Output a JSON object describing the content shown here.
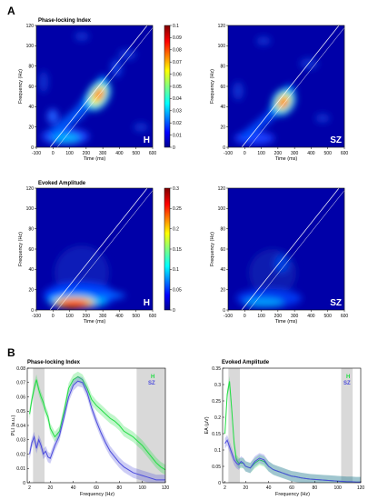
{
  "panel_a_label": "A",
  "panel_b_label": "B",
  "heatmaps": {
    "ylabel": "Frequency (Hz)",
    "xlabel": "Time (ms)",
    "xticks": [
      "-100",
      "0",
      "100",
      "200",
      "300",
      "400",
      "500",
      "600"
    ],
    "yticks": [
      "0",
      "20",
      "40",
      "60",
      "80",
      "100",
      "120"
    ],
    "rows": [
      {
        "title": "Phase-locking Index",
        "cbar_ticks": [
          "0",
          "0.01",
          "0.02",
          "0.03",
          "0.04",
          "0.05",
          "0.06",
          "0.07",
          "0.08",
          "0.09",
          "0.1"
        ],
        "groups": [
          "H",
          "SZ"
        ]
      },
      {
        "title": "Evoked Amplitude",
        "cbar_ticks": [
          "0",
          "0.05",
          "0.1",
          "0.15",
          "0.2",
          "0.25",
          "0.3"
        ],
        "groups": [
          "H",
          "SZ"
        ]
      }
    ]
  },
  "colors": {
    "healthy": "#22dd44",
    "schizophrenia": "#4b4bdc",
    "band_shade": "#d9d9d9"
  },
  "chart_data": [
    {
      "type": "line",
      "title": "Phase-locking Index",
      "xlabel": "Frequency (Hz)",
      "ylabel": "PLI (a.u.)",
      "xlim": [
        0,
        120
      ],
      "ylim": [
        0,
        0.08
      ],
      "xticks": [
        "2",
        "20",
        "40",
        "60",
        "80",
        "100",
        "120"
      ],
      "yticks": [
        "0",
        "0.01",
        "0.02",
        "0.03",
        "0.04",
        "0.05",
        "0.06",
        "0.07",
        "0.08"
      ],
      "legend": [
        "H",
        "SZ"
      ],
      "x": [
        2,
        4,
        6,
        8,
        10,
        12,
        14,
        16,
        18,
        20,
        24,
        28,
        32,
        36,
        40,
        44,
        48,
        52,
        56,
        60,
        64,
        68,
        72,
        76,
        80,
        84,
        88,
        92,
        96,
        100,
        104,
        108,
        112,
        116,
        120
      ],
      "series": [
        {
          "name": "H",
          "values": [
            0.048,
            0.058,
            0.066,
            0.072,
            0.065,
            0.06,
            0.056,
            0.05,
            0.046,
            0.038,
            0.032,
            0.036,
            0.05,
            0.066,
            0.072,
            0.074,
            0.072,
            0.066,
            0.058,
            0.054,
            0.051,
            0.048,
            0.045,
            0.043,
            0.04,
            0.036,
            0.034,
            0.032,
            0.029,
            0.026,
            0.022,
            0.018,
            0.014,
            0.011,
            0.009
          ]
        },
        {
          "name": "SZ",
          "values": [
            0.02,
            0.028,
            0.032,
            0.024,
            0.03,
            0.026,
            0.02,
            0.022,
            0.018,
            0.017,
            0.026,
            0.033,
            0.046,
            0.06,
            0.068,
            0.071,
            0.07,
            0.063,
            0.052,
            0.043,
            0.035,
            0.028,
            0.022,
            0.018,
            0.014,
            0.011,
            0.009,
            0.007,
            0.006,
            0.005,
            0.004,
            0.003,
            0.002,
            0.002,
            0.002
          ]
        }
      ],
      "shaded_bands_hz": [
        [
          5,
          15
        ],
        [
          95,
          120
        ]
      ],
      "legend_position": "top-right"
    },
    {
      "type": "line",
      "title": "Evoked Amplitude",
      "xlabel": "Frequency (Hz)",
      "ylabel": "EA (μV)",
      "xlim": [
        0,
        120
      ],
      "ylim": [
        0,
        0.35
      ],
      "xticks": [
        "2",
        "20",
        "40",
        "60",
        "80",
        "100",
        "120"
      ],
      "yticks": [
        "0",
        "0.05",
        "0.1",
        "0.15",
        "0.2",
        "0.25",
        "0.3",
        "0.35"
      ],
      "legend": [
        "H",
        "SZ"
      ],
      "x": [
        2,
        4,
        6,
        8,
        10,
        12,
        14,
        16,
        18,
        20,
        24,
        28,
        32,
        36,
        40,
        44,
        48,
        52,
        56,
        60,
        64,
        68,
        72,
        76,
        80,
        84,
        88,
        92,
        96,
        100,
        104,
        108,
        112,
        116,
        120
      ],
      "series": [
        {
          "name": "H",
          "values": [
            0.15,
            0.27,
            0.31,
            0.22,
            0.12,
            0.07,
            0.06,
            0.06,
            0.06,
            0.05,
            0.045,
            0.06,
            0.07,
            0.065,
            0.05,
            0.04,
            0.035,
            0.03,
            0.025,
            0.02,
            0.018,
            0.015,
            0.013,
            0.011,
            0.01,
            0.009,
            0.008,
            0.007,
            0.006,
            0.005,
            0.004,
            0.003,
            0.003,
            0.002,
            0.002
          ]
        },
        {
          "name": "SZ",
          "values": [
            0.12,
            0.13,
            0.11,
            0.09,
            0.07,
            0.06,
            0.055,
            0.065,
            0.06,
            0.05,
            0.045,
            0.065,
            0.075,
            0.07,
            0.05,
            0.04,
            0.035,
            0.03,
            0.025,
            0.02,
            0.018,
            0.015,
            0.013,
            0.011,
            0.01,
            0.009,
            0.008,
            0.007,
            0.006,
            0.005,
            0.004,
            0.003,
            0.003,
            0.002,
            0.002
          ]
        }
      ],
      "shaded_bands_hz": [
        [
          5,
          15
        ],
        [
          103,
          113
        ]
      ],
      "legend_position": "top-right"
    }
  ]
}
